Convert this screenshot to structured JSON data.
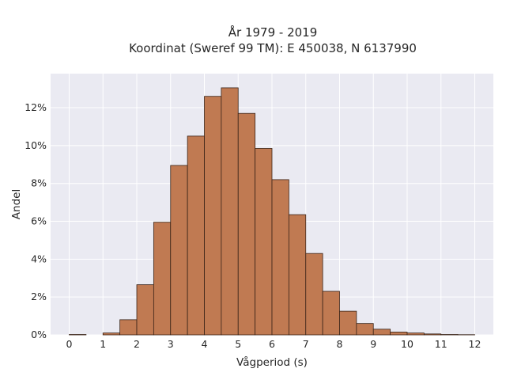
{
  "chart_data": {
    "type": "bar",
    "title_lines": [
      "År 1979 - 2019",
      "Koordinat (Sweref 99 TM): E 450038, N 6137990"
    ],
    "xlabel": "Vågperiod (s)",
    "ylabel": "Andel",
    "xlim": [
      -0.55,
      12.55
    ],
    "ylim": [
      0,
      13.8
    ],
    "xticks": [
      0,
      1,
      2,
      3,
      4,
      5,
      6,
      7,
      8,
      9,
      10,
      11,
      12
    ],
    "yticks": [
      0,
      2,
      4,
      6,
      8,
      10,
      12
    ],
    "ytick_labels": [
      "0%",
      "2%",
      "4%",
      "6%",
      "8%",
      "10%",
      "12%"
    ],
    "bin_width": 0.5,
    "bin_edges_start": 0,
    "values": [
      0.02,
      0.0,
      0.1,
      0.8,
      2.65,
      5.95,
      8.95,
      10.5,
      12.6,
      13.05,
      11.7,
      9.85,
      8.2,
      6.35,
      4.3,
      2.3,
      1.25,
      0.6,
      0.3,
      0.15,
      0.1,
      0.05,
      0.02,
      0.01
    ],
    "grid": true,
    "colors": {
      "bar_fill": "#c07a52",
      "bar_edge": "#3a2418",
      "plot_background": "#eaeaf2",
      "grid": "#ffffff",
      "text": "#262626"
    }
  }
}
